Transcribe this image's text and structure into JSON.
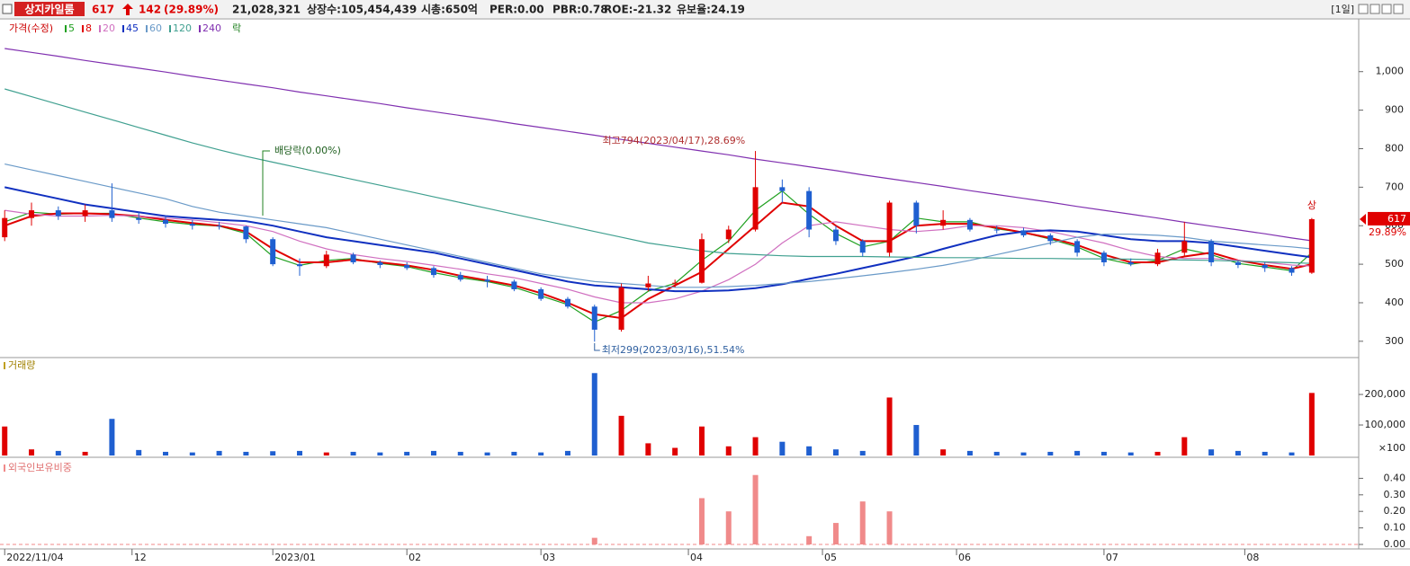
{
  "header": {
    "name": "상지카일룸",
    "price": "617",
    "change": "142",
    "change_pct": "(29.89%)",
    "volume": "21,028,321",
    "listed": "상장수:105,454,439",
    "cap": "시총:650억",
    "per": "PER:0.00",
    "pbr": "PBR:0.78",
    "roe": "ROE:-21.32",
    "reserve": "유보율:24.19",
    "period": "[1일]"
  },
  "chart_data": [
    {
      "type": "candlestick",
      "title": "가격(수정)",
      "extra_legend": "락",
      "x": [
        0,
        4,
        8,
        12,
        16,
        20,
        24,
        28,
        32,
        36,
        40,
        44,
        48,
        52,
        56,
        60,
        64,
        68,
        72,
        76,
        80,
        84,
        88,
        92,
        96,
        100,
        104,
        108,
        112,
        116,
        120,
        124,
        128,
        132,
        136,
        140,
        144,
        148,
        152,
        156,
        160,
        164,
        168,
        172,
        176,
        180,
        184,
        188,
        192,
        195
      ],
      "open": [
        570,
        620,
        640,
        625,
        640,
        620,
        615,
        605,
        600,
        598,
        565,
        500,
        495,
        525,
        505,
        498,
        490,
        472,
        460,
        455,
        435,
        410,
        390,
        330,
        440,
        450,
        452,
        565,
        590,
        700,
        690,
        590,
        560,
        530,
        660,
        600,
        615,
        590,
        588,
        575,
        560,
        530,
        505,
        500,
        530,
        560,
        505,
        498,
        490,
        478
      ],
      "high": [
        640,
        660,
        650,
        655,
        710,
        635,
        625,
        615,
        610,
        600,
        570,
        515,
        535,
        530,
        510,
        505,
        495,
        480,
        470,
        460,
        440,
        415,
        395,
        450,
        470,
        460,
        580,
        600,
        794,
        720,
        700,
        600,
        565,
        665,
        665,
        640,
        620,
        600,
        595,
        580,
        565,
        535,
        515,
        540,
        610,
        565,
        510,
        505,
        495,
        620
      ],
      "low": [
        560,
        600,
        615,
        610,
        610,
        605,
        595,
        590,
        590,
        555,
        495,
        470,
        490,
        500,
        490,
        485,
        465,
        455,
        440,
        430,
        405,
        385,
        299,
        325,
        430,
        440,
        450,
        555,
        585,
        660,
        570,
        550,
        520,
        520,
        580,
        590,
        585,
        580,
        570,
        550,
        520,
        495,
        495,
        495,
        520,
        495,
        490,
        480,
        470,
        475
      ],
      "close": [
        620,
        640,
        625,
        640,
        620,
        615,
        605,
        600,
        598,
        565,
        500,
        495,
        525,
        505,
        498,
        490,
        472,
        460,
        455,
        435,
        410,
        390,
        330,
        440,
        450,
        452,
        565,
        590,
        700,
        690,
        590,
        560,
        530,
        660,
        600,
        615,
        590,
        588,
        575,
        560,
        530,
        505,
        500,
        530,
        560,
        505,
        498,
        490,
        478,
        617
      ],
      "up_color": "#e00000",
      "down_color": "#1f5fd0",
      "series": [
        {
          "name": "5",
          "color": "#20a020",
          "values": [
            610,
            635,
            630,
            632,
            632,
            620,
            610,
            603,
            599,
            580,
            520,
            497,
            510,
            515,
            502,
            494,
            478,
            465,
            455,
            440,
            418,
            395,
            350,
            380,
            430,
            450,
            510,
            560,
            640,
            690,
            630,
            580,
            545,
            560,
            620,
            610,
            610,
            592,
            582,
            565,
            545,
            515,
            500,
            510,
            540,
            525,
            502,
            493,
            483,
            530
          ]
        },
        {
          "name": "8",
          "color": "#e00000",
          "values": [
            600,
            625,
            632,
            632,
            630,
            625,
            615,
            607,
            600,
            585,
            540,
            505,
            505,
            512,
            505,
            497,
            485,
            470,
            458,
            445,
            425,
            400,
            370,
            360,
            410,
            445,
            480,
            540,
            600,
            660,
            650,
            600,
            560,
            560,
            600,
            605,
            605,
            595,
            582,
            568,
            550,
            525,
            505,
            505,
            520,
            530,
            510,
            498,
            488,
            500
          ]
        },
        {
          "name": "20",
          "color": "#d070c0",
          "values": [
            640,
            630,
            625,
            625,
            627,
            625,
            620,
            615,
            608,
            600,
            585,
            560,
            540,
            525,
            515,
            507,
            497,
            487,
            475,
            465,
            450,
            435,
            415,
            400,
            400,
            410,
            430,
            460,
            500,
            555,
            600,
            610,
            600,
            590,
            585,
            590,
            600,
            600,
            595,
            585,
            570,
            555,
            535,
            520,
            515,
            515,
            510,
            505,
            498,
            495
          ]
        },
        {
          "name": "45",
          "color": "#1030c0",
          "values": [
            700,
            685,
            670,
            655,
            645,
            635,
            625,
            620,
            615,
            612,
            600,
            585,
            570,
            560,
            550,
            540,
            530,
            515,
            500,
            485,
            470,
            455,
            445,
            440,
            435,
            430,
            430,
            432,
            438,
            448,
            462,
            475,
            490,
            505,
            520,
            540,
            558,
            575,
            585,
            588,
            585,
            575,
            565,
            560,
            560,
            555,
            545,
            535,
            525,
            518
          ]
        },
        {
          "name": "60",
          "color": "#6a9ac8",
          "values": [
            760,
            745,
            730,
            715,
            700,
            685,
            670,
            650,
            635,
            625,
            615,
            605,
            595,
            580,
            565,
            550,
            535,
            520,
            505,
            490,
            475,
            465,
            455,
            450,
            445,
            440,
            440,
            442,
            445,
            450,
            455,
            462,
            470,
            478,
            487,
            497,
            510,
            525,
            540,
            555,
            570,
            578,
            578,
            575,
            570,
            560,
            555,
            550,
            545,
            540
          ]
        },
        {
          "name": "120",
          "color": "#40a090",
          "values": [
            955,
            935,
            915,
            895,
            875,
            855,
            835,
            815,
            797,
            780,
            765,
            750,
            735,
            720,
            705,
            690,
            675,
            660,
            645,
            630,
            615,
            600,
            585,
            570,
            555,
            545,
            535,
            528,
            525,
            522,
            520,
            520,
            520,
            519,
            518,
            517,
            517,
            516,
            515,
            515,
            514,
            514,
            513,
            512,
            511,
            510,
            508,
            506,
            504,
            502
          ]
        },
        {
          "name": "240",
          "color": "#8030b0",
          "values": [
            1060,
            1050,
            1040,
            1029,
            1019,
            1009,
            999,
            988,
            978,
            968,
            958,
            947,
            937,
            927,
            917,
            906,
            896,
            886,
            876,
            865,
            855,
            845,
            835,
            824,
            814,
            804,
            794,
            784,
            773,
            763,
            753,
            743,
            732,
            722,
            712,
            702,
            691,
            681,
            671,
            661,
            650,
            640,
            630,
            620,
            609,
            599,
            589,
            579,
            568,
            561
          ]
        }
      ],
      "annotations": [
        "최고794(2023/04/17),28.69%",
        "최저299(2023/03/16),51.54%",
        "배당락(0.00%)",
        "상"
      ],
      "last_label": "617",
      "last_pct": "29.89%",
      "xlim": [
        -0.7,
        202
      ],
      "xticks": [
        {
          "value": 0,
          "label": "2022/11/04"
        },
        {
          "value": 19,
          "label": "12"
        },
        {
          "value": 40,
          "label": "2023/01"
        },
        {
          "value": 60,
          "label": "02"
        },
        {
          "value": 80,
          "label": "03"
        },
        {
          "value": 102,
          "label": "04"
        },
        {
          "value": 122,
          "label": "05"
        },
        {
          "value": 142,
          "label": "06"
        },
        {
          "value": 164,
          "label": "07"
        },
        {
          "value": 185,
          "label": "08"
        }
      ],
      "ylim": [
        260,
        1130
      ],
      "yticks": [
        300,
        400,
        500,
        600,
        700,
        800,
        900,
        {
          "value": 1000,
          "label": "1,000"
        }
      ]
    },
    {
      "type": "bar",
      "title": "거래량",
      "unit": "×100",
      "values": [
        95000,
        20000,
        15000,
        12000,
        120000,
        18000,
        12000,
        10000,
        15000,
        12000,
        14000,
        15000,
        10000,
        12000,
        10000,
        12000,
        15000,
        12000,
        10000,
        12000,
        10000,
        15000,
        270000,
        130000,
        40000,
        25000,
        95000,
        30000,
        60000,
        45000,
        30000,
        20000,
        15000,
        190000,
        100000,
        20000,
        15000,
        12000,
        10000,
        12000,
        15000,
        12000,
        10000,
        12000,
        60000,
        20000,
        15000,
        12000,
        10000,
        205000
      ],
      "ylim": [
        0,
        315000
      ],
      "yticks": [
        {
          "value": 100000,
          "label": "100,000"
        },
        {
          "value": 200000,
          "label": "200,000"
        }
      ]
    },
    {
      "type": "bar",
      "title": "외국인보유비중",
      "color": "#f08a8a",
      "values": [
        0,
        0,
        0,
        0,
        0,
        0,
        0,
        0,
        0,
        0,
        0,
        0,
        0,
        0,
        0,
        0,
        0,
        0,
        0,
        0,
        0,
        0,
        0.04,
        0,
        0,
        0,
        0.28,
        0.2,
        0.42,
        0,
        0.05,
        0.13,
        0.26,
        0.2,
        0,
        0,
        0,
        0,
        0,
        0,
        0,
        0,
        0,
        0,
        0,
        0,
        0,
        0,
        0,
        0
      ],
      "ylim": [
        0,
        0.5
      ],
      "yticks": [
        {
          "value": 0,
          "label": "0.00"
        },
        {
          "value": 0.1,
          "label": "0.10"
        },
        {
          "value": 0.2,
          "label": "0.20"
        },
        {
          "value": 0.3,
          "label": "0.30"
        },
        {
          "value": 0.4,
          "label": "0.40"
        }
      ]
    }
  ]
}
